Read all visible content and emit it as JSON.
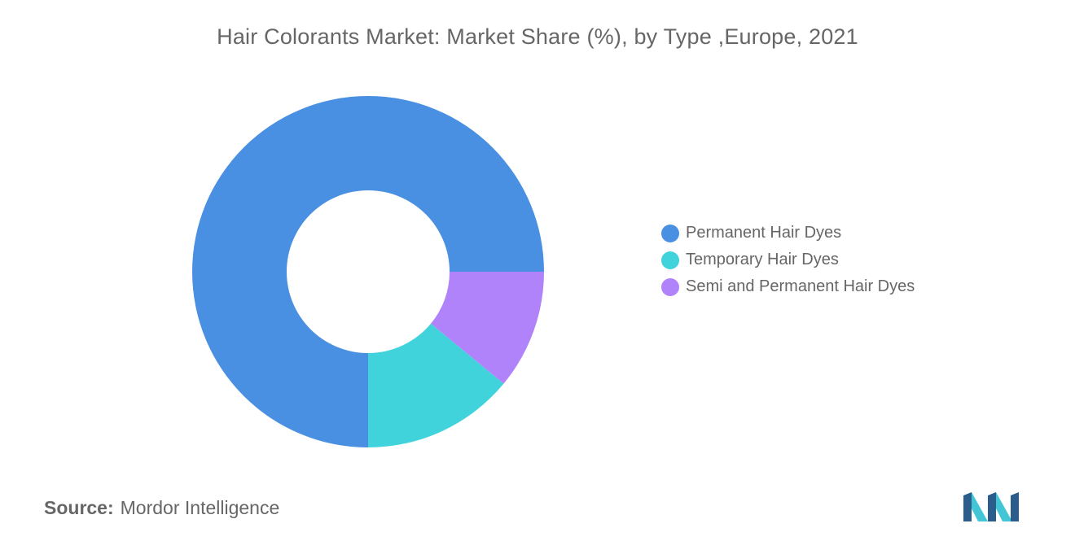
{
  "chart_data": {
    "type": "pie",
    "title": "Hair Colorants Market: Market Share (%), by Type ,Europe, 2021",
    "categories": [
      "Permanent Hair Dyes",
      "Temporary Hair Dyes",
      "Semi and Permanent Hair Dyes"
    ],
    "values": [
      75,
      14,
      11
    ],
    "colors": [
      "#4a90e2",
      "#40d3db",
      "#b183fb"
    ],
    "legend_position": "right",
    "donut": true
  },
  "source": {
    "label": "Source:",
    "text": "Mordor Intelligence"
  },
  "logo": {
    "icon": "mordor-intelligence-logo-icon",
    "colors": [
      "#2b5d8c",
      "#42c6d6"
    ]
  }
}
